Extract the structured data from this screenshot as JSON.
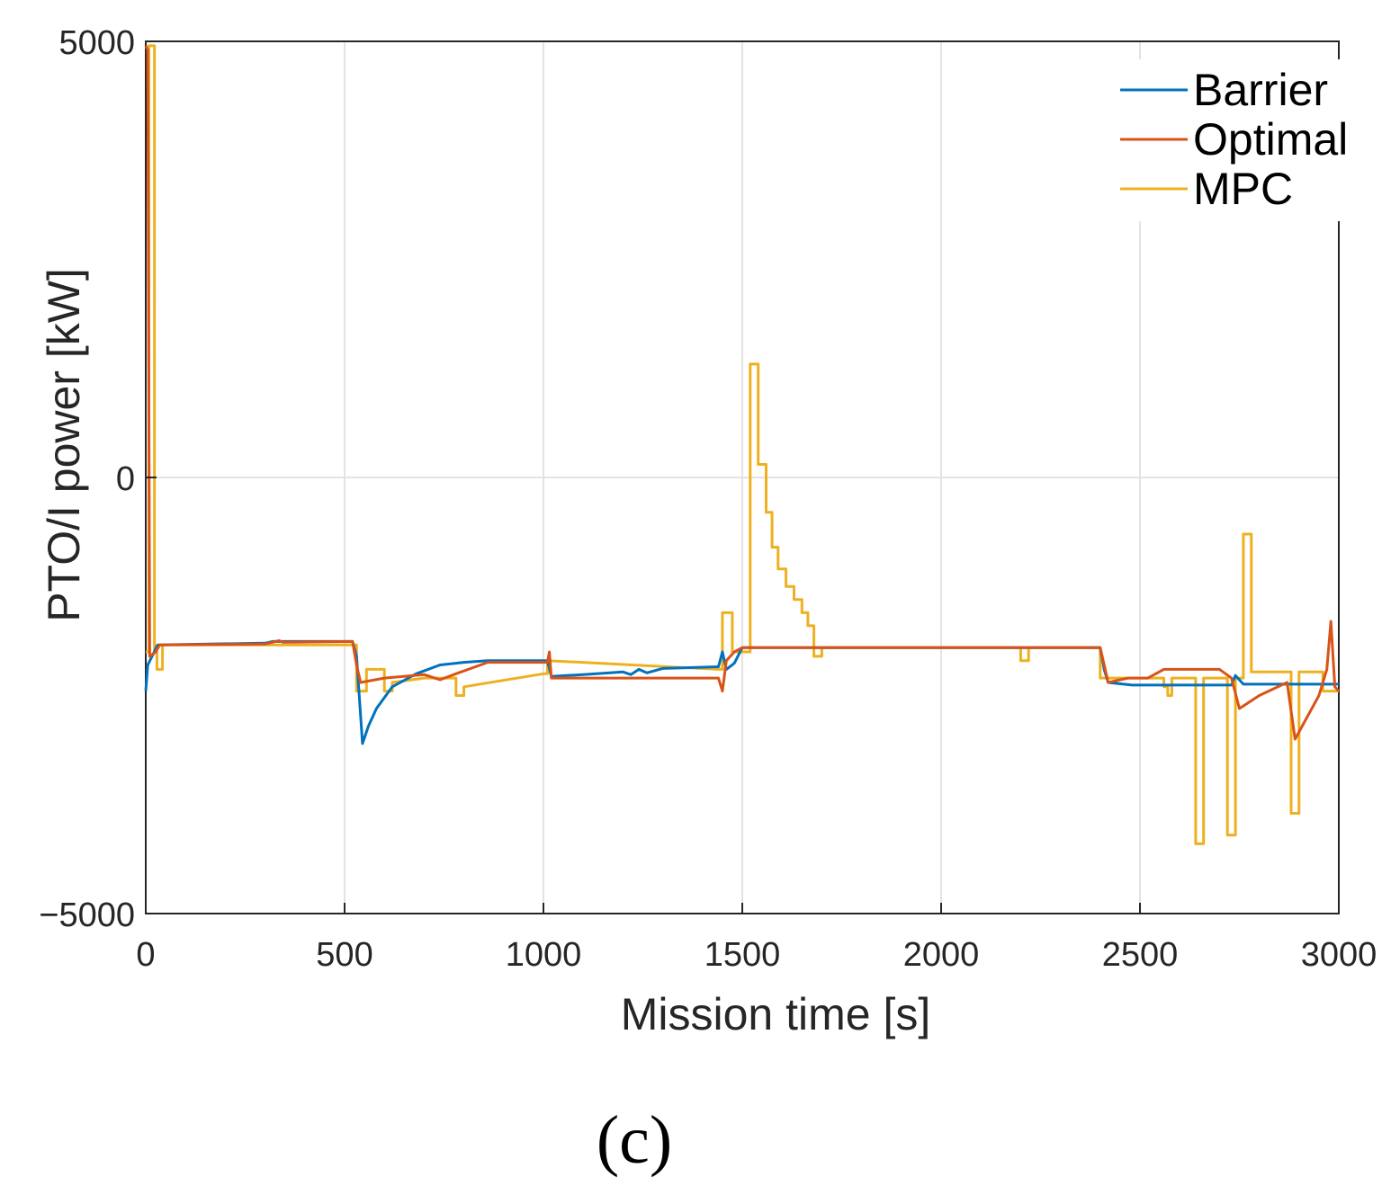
{
  "chart_data": {
    "type": "line",
    "title": "",
    "xlabel": "Mission time [s]",
    "ylabel": "PTO/I power [kW]",
    "xlim": [
      0,
      3000
    ],
    "ylim": [
      -5000,
      5000
    ],
    "xticks": [
      0,
      500,
      1000,
      1500,
      2000,
      2500,
      3000
    ],
    "yticks": [
      -5000,
      0,
      5000
    ],
    "xtick_labels": [
      "0",
      "500",
      "1000",
      "1500",
      "2000",
      "2500",
      "3000"
    ],
    "ytick_labels": [
      "−5000",
      "0",
      "5000"
    ],
    "grid": true,
    "legend_position": "top-right",
    "series": [
      {
        "name": "Barrier",
        "color": "#0072BD",
        "points": [
          [
            0,
            -2450
          ],
          [
            5,
            -2150
          ],
          [
            30,
            -1920
          ],
          [
            300,
            -1900
          ],
          [
            320,
            -1880
          ],
          [
            520,
            -1880
          ],
          [
            530,
            -2050
          ],
          [
            545,
            -3050
          ],
          [
            560,
            -2850
          ],
          [
            580,
            -2650
          ],
          [
            620,
            -2400
          ],
          [
            680,
            -2250
          ],
          [
            740,
            -2150
          ],
          [
            800,
            -2120
          ],
          [
            860,
            -2100
          ],
          [
            1010,
            -2100
          ],
          [
            1020,
            -2280
          ],
          [
            1100,
            -2260
          ],
          [
            1200,
            -2230
          ],
          [
            1220,
            -2260
          ],
          [
            1240,
            -2200
          ],
          [
            1260,
            -2240
          ],
          [
            1300,
            -2190
          ],
          [
            1440,
            -2170
          ],
          [
            1450,
            -2000
          ],
          [
            1460,
            -2200
          ],
          [
            1480,
            -2130
          ],
          [
            1500,
            -1950
          ],
          [
            2400,
            -1950
          ],
          [
            2410,
            -2200
          ],
          [
            2420,
            -2350
          ],
          [
            2480,
            -2380
          ],
          [
            2730,
            -2380
          ],
          [
            2740,
            -2270
          ],
          [
            2760,
            -2370
          ],
          [
            3000,
            -2370
          ]
        ]
      },
      {
        "name": "Optimal",
        "color": "#D95319",
        "points": [
          [
            0,
            4950
          ],
          [
            5,
            4900
          ],
          [
            10,
            -2050
          ],
          [
            25,
            -2000
          ],
          [
            35,
            -1920
          ],
          [
            300,
            -1910
          ],
          [
            335,
            -1870
          ],
          [
            345,
            -1890
          ],
          [
            520,
            -1880
          ],
          [
            530,
            -2150
          ],
          [
            540,
            -2350
          ],
          [
            600,
            -2300
          ],
          [
            700,
            -2260
          ],
          [
            740,
            -2320
          ],
          [
            780,
            -2250
          ],
          [
            860,
            -2120
          ],
          [
            1010,
            -2120
          ],
          [
            1015,
            -2000
          ],
          [
            1020,
            -2300
          ],
          [
            1440,
            -2300
          ],
          [
            1450,
            -2450
          ],
          [
            1460,
            -2100
          ],
          [
            1480,
            -2000
          ],
          [
            1500,
            -1950
          ],
          [
            2400,
            -1950
          ],
          [
            2410,
            -2150
          ],
          [
            2420,
            -2350
          ],
          [
            2470,
            -2300
          ],
          [
            2520,
            -2300
          ],
          [
            2560,
            -2200
          ],
          [
            2650,
            -2200
          ],
          [
            2700,
            -2200
          ],
          [
            2730,
            -2300
          ],
          [
            2750,
            -2650
          ],
          [
            2800,
            -2500
          ],
          [
            2870,
            -2350
          ],
          [
            2890,
            -3000
          ],
          [
            2950,
            -2500
          ],
          [
            2970,
            -2200
          ],
          [
            2980,
            -1650
          ],
          [
            2990,
            -2400
          ],
          [
            3000,
            -2450
          ]
        ]
      },
      {
        "name": "MPC",
        "color": "#EDB120",
        "points": [
          [
            0,
            -2000
          ],
          [
            8,
            -2000
          ],
          [
            8,
            4950
          ],
          [
            22,
            4950
          ],
          [
            22,
            -2000
          ],
          [
            28,
            -2000
          ],
          [
            28,
            -2200
          ],
          [
            42,
            -2200
          ],
          [
            42,
            -1920
          ],
          [
            500,
            -1920
          ],
          [
            500,
            -1920
          ],
          [
            530,
            -1920
          ],
          [
            530,
            -2450
          ],
          [
            555,
            -2450
          ],
          [
            555,
            -2200
          ],
          [
            600,
            -2200
          ],
          [
            600,
            -2450
          ],
          [
            620,
            -2450
          ],
          [
            620,
            -2350
          ],
          [
            700,
            -2300
          ],
          [
            780,
            -2300
          ],
          [
            780,
            -2500
          ],
          [
            800,
            -2500
          ],
          [
            800,
            -2400
          ],
          [
            1000,
            -2250
          ],
          [
            1010,
            -2250
          ],
          [
            1010,
            -2100
          ],
          [
            1440,
            -2200
          ],
          [
            1450,
            -2200
          ],
          [
            1450,
            -1550
          ],
          [
            1475,
            -1550
          ],
          [
            1475,
            -2000
          ],
          [
            1520,
            -2000
          ],
          [
            1520,
            1300
          ],
          [
            1540,
            1300
          ],
          [
            1540,
            150
          ],
          [
            1560,
            150
          ],
          [
            1560,
            -400
          ],
          [
            1575,
            -400
          ],
          [
            1575,
            -800
          ],
          [
            1590,
            -800
          ],
          [
            1590,
            -1050
          ],
          [
            1610,
            -1050
          ],
          [
            1610,
            -1250
          ],
          [
            1630,
            -1250
          ],
          [
            1630,
            -1400
          ],
          [
            1650,
            -1400
          ],
          [
            1650,
            -1550
          ],
          [
            1665,
            -1550
          ],
          [
            1665,
            -1700
          ],
          [
            1680,
            -1700
          ],
          [
            1680,
            -2050
          ],
          [
            1700,
            -2050
          ],
          [
            1700,
            -1950
          ],
          [
            2200,
            -1950
          ],
          [
            2200,
            -2100
          ],
          [
            2220,
            -2100
          ],
          [
            2220,
            -1950
          ],
          [
            2400,
            -1950
          ],
          [
            2400,
            -2300
          ],
          [
            2560,
            -2300
          ],
          [
            2560,
            -2400
          ],
          [
            2570,
            -2400
          ],
          [
            2570,
            -2500
          ],
          [
            2580,
            -2500
          ],
          [
            2580,
            -2300
          ],
          [
            2640,
            -2300
          ],
          [
            2640,
            -4200
          ],
          [
            2660,
            -4200
          ],
          [
            2660,
            -2300
          ],
          [
            2720,
            -2300
          ],
          [
            2720,
            -4100
          ],
          [
            2740,
            -4100
          ],
          [
            2740,
            -2300
          ],
          [
            2760,
            -2300
          ],
          [
            2760,
            -650
          ],
          [
            2780,
            -650
          ],
          [
            2780,
            -2230
          ],
          [
            2860,
            -2230
          ],
          [
            2880,
            -2230
          ],
          [
            2880,
            -3850
          ],
          [
            2900,
            -3850
          ],
          [
            2900,
            -2230
          ],
          [
            2960,
            -2230
          ],
          [
            2960,
            -2450
          ],
          [
            2990,
            -2450
          ],
          [
            3000,
            -2450
          ]
        ]
      }
    ]
  },
  "caption": "(c)"
}
